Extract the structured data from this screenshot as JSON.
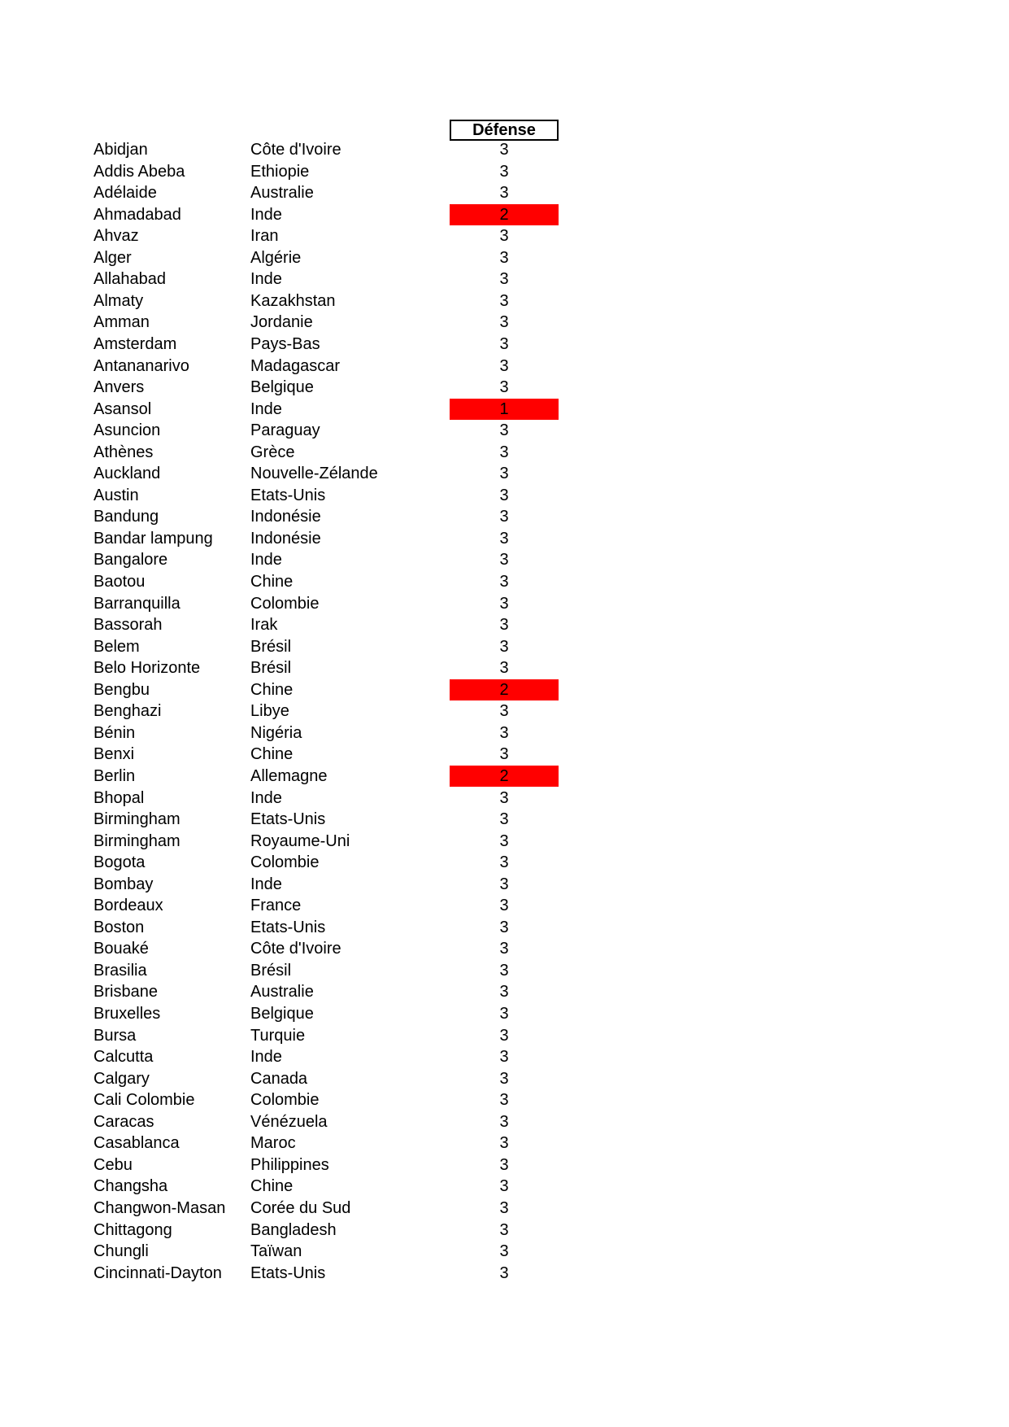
{
  "page": {
    "background": "#ffffff",
    "text_color": "#000000"
  },
  "table": {
    "header": {
      "label": "Défense"
    },
    "columns": [
      "city",
      "country",
      "defense"
    ],
    "highlight_color": "#ff0000",
    "rows": [
      {
        "city": "Abidjan",
        "country": "Côte d'Ivoire",
        "defense": 3,
        "highlight": false
      },
      {
        "city": "Addis Abeba",
        "country": "Ethiopie",
        "defense": 3,
        "highlight": false
      },
      {
        "city": "Adélaide",
        "country": "Australie",
        "defense": 3,
        "highlight": false
      },
      {
        "city": "Ahmadabad",
        "country": "Inde",
        "defense": 2,
        "highlight": true
      },
      {
        "city": "Ahvaz",
        "country": "Iran",
        "defense": 3,
        "highlight": false
      },
      {
        "city": "Alger",
        "country": "Algérie",
        "defense": 3,
        "highlight": false
      },
      {
        "city": "Allahabad",
        "country": "Inde",
        "defense": 3,
        "highlight": false
      },
      {
        "city": "Almaty",
        "country": "Kazakhstan",
        "defense": 3,
        "highlight": false
      },
      {
        "city": "Amman",
        "country": "Jordanie",
        "defense": 3,
        "highlight": false
      },
      {
        "city": "Amsterdam",
        "country": "Pays-Bas",
        "defense": 3,
        "highlight": false
      },
      {
        "city": "Antananarivo",
        "country": "Madagascar",
        "defense": 3,
        "highlight": false
      },
      {
        "city": "Anvers",
        "country": "Belgique",
        "defense": 3,
        "highlight": false
      },
      {
        "city": "Asansol",
        "country": "Inde",
        "defense": 1,
        "highlight": true
      },
      {
        "city": "Asuncion",
        "country": "Paraguay",
        "defense": 3,
        "highlight": false
      },
      {
        "city": "Athènes",
        "country": "Grèce",
        "defense": 3,
        "highlight": false
      },
      {
        "city": "Auckland",
        "country": "Nouvelle-Zélande",
        "defense": 3,
        "highlight": false
      },
      {
        "city": "Austin",
        "country": "Etats-Unis",
        "defense": 3,
        "highlight": false
      },
      {
        "city": "Bandung",
        "country": "Indonésie",
        "defense": 3,
        "highlight": false
      },
      {
        "city": "Bandar lampung",
        "country": "Indonésie",
        "defense": 3,
        "highlight": false
      },
      {
        "city": "Bangalore",
        "country": "Inde",
        "defense": 3,
        "highlight": false
      },
      {
        "city": "Baotou",
        "country": "Chine",
        "defense": 3,
        "highlight": false
      },
      {
        "city": "Barranquilla",
        "country": "Colombie",
        "defense": 3,
        "highlight": false
      },
      {
        "city": "Bassorah",
        "country": "Irak",
        "defense": 3,
        "highlight": false
      },
      {
        "city": "Belem",
        "country": "Brésil",
        "defense": 3,
        "highlight": false
      },
      {
        "city": "Belo Horizonte",
        "country": "Brésil",
        "defense": 3,
        "highlight": false
      },
      {
        "city": "Bengbu",
        "country": "Chine",
        "defense": 2,
        "highlight": true
      },
      {
        "city": "Benghazi",
        "country": "Libye",
        "defense": 3,
        "highlight": false
      },
      {
        "city": "Bénin",
        "country": "Nigéria",
        "defense": 3,
        "highlight": false
      },
      {
        "city": "Benxi",
        "country": "Chine",
        "defense": 3,
        "highlight": false
      },
      {
        "city": "Berlin",
        "country": "Allemagne",
        "defense": 2,
        "highlight": true
      },
      {
        "city": "Bhopal",
        "country": "Inde",
        "defense": 3,
        "highlight": false
      },
      {
        "city": "Birmingham",
        "country": "Etats-Unis",
        "defense": 3,
        "highlight": false
      },
      {
        "city": "Birmingham",
        "country": "Royaume-Uni",
        "defense": 3,
        "highlight": false
      },
      {
        "city": "Bogota",
        "country": "Colombie",
        "defense": 3,
        "highlight": false
      },
      {
        "city": "Bombay",
        "country": "Inde",
        "defense": 3,
        "highlight": false
      },
      {
        "city": "Bordeaux",
        "country": "France",
        "defense": 3,
        "highlight": false
      },
      {
        "city": "Boston",
        "country": "Etats-Unis",
        "defense": 3,
        "highlight": false
      },
      {
        "city": "Bouaké",
        "country": "Côte d'Ivoire",
        "defense": 3,
        "highlight": false
      },
      {
        "city": "Brasilia",
        "country": "Brésil",
        "defense": 3,
        "highlight": false
      },
      {
        "city": "Brisbane",
        "country": "Australie",
        "defense": 3,
        "highlight": false
      },
      {
        "city": "Bruxelles",
        "country": "Belgique",
        "defense": 3,
        "highlight": false
      },
      {
        "city": "Bursa",
        "country": "Turquie",
        "defense": 3,
        "highlight": false
      },
      {
        "city": "Calcutta",
        "country": "Inde",
        "defense": 3,
        "highlight": false
      },
      {
        "city": "Calgary",
        "country": "Canada",
        "defense": 3,
        "highlight": false
      },
      {
        "city": "Cali Colombie",
        "country": "Colombie",
        "defense": 3,
        "highlight": false
      },
      {
        "city": "Caracas",
        "country": "Vénézuela",
        "defense": 3,
        "highlight": false
      },
      {
        "city": "Casablanca",
        "country": "Maroc",
        "defense": 3,
        "highlight": false
      },
      {
        "city": "Cebu",
        "country": "Philippines",
        "defense": 3,
        "highlight": false
      },
      {
        "city": "Changsha",
        "country": "Chine",
        "defense": 3,
        "highlight": false
      },
      {
        "city": "Changwon-Masan",
        "country": "Corée du Sud",
        "defense": 3,
        "highlight": false
      },
      {
        "city": "Chittagong",
        "country": "Bangladesh",
        "defense": 3,
        "highlight": false
      },
      {
        "city": "Chungli",
        "country": "Taïwan",
        "defense": 3,
        "highlight": false
      },
      {
        "city": "Cincinnati-Dayton",
        "country": "Etats-Unis",
        "defense": 3,
        "highlight": false
      }
    ]
  }
}
